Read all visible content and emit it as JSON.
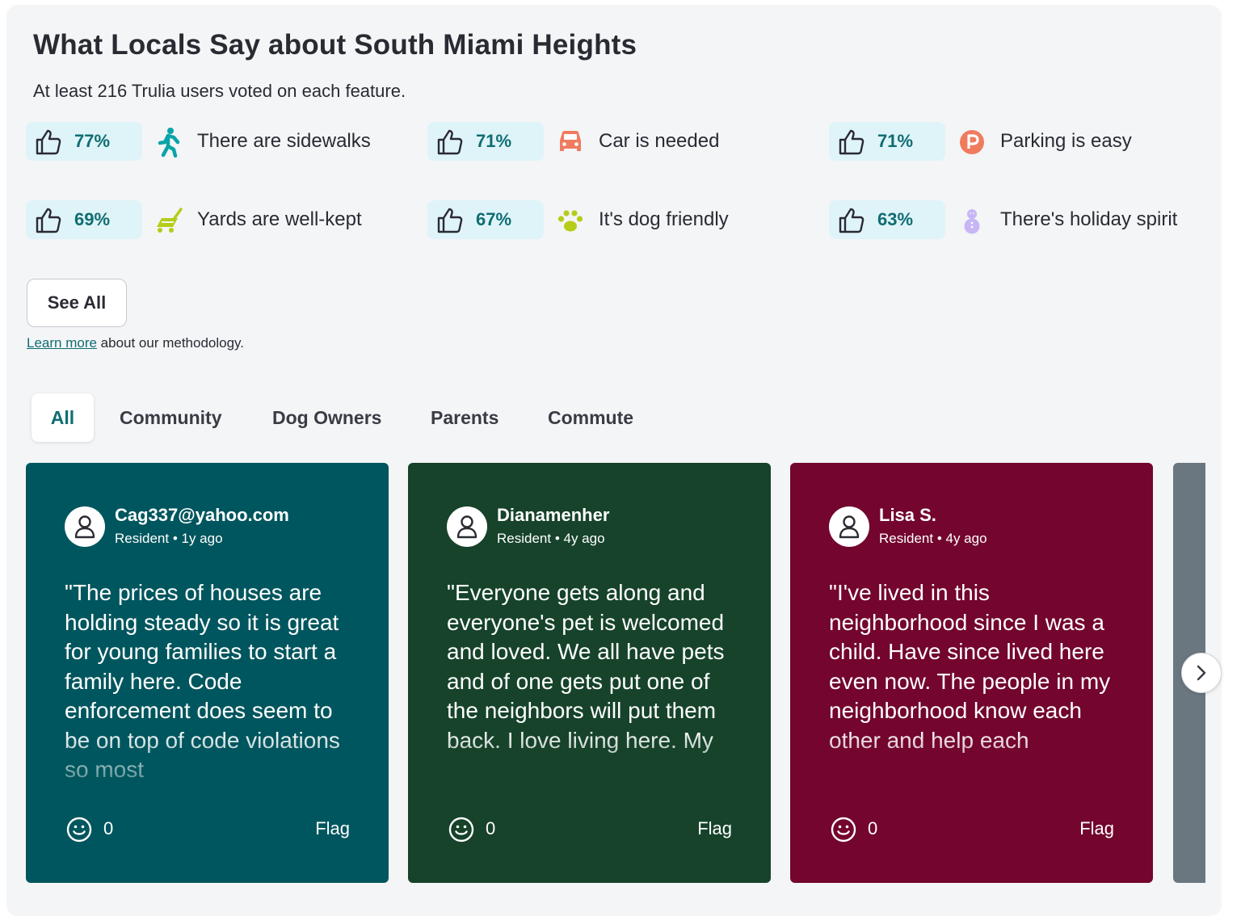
{
  "header": {
    "title": "What Locals Say about South Miami Heights",
    "subtitle": "At least 216 Trulia users voted on each feature."
  },
  "features": [
    {
      "percent": "77%",
      "label": "There are sidewalks",
      "icon": "walking-person-icon",
      "color": "#0aa4a8"
    },
    {
      "percent": "71%",
      "label": "Car is needed",
      "icon": "car-icon",
      "color": "#f07b5f"
    },
    {
      "percent": "71%",
      "label": "Parking is easy",
      "icon": "parking-icon",
      "color": "#f07b5f"
    },
    {
      "percent": "69%",
      "label": "Yards are well-kept",
      "icon": "lawn-mower-icon",
      "color": "#b5cc18"
    },
    {
      "percent": "67%",
      "label": "It's dog friendly",
      "icon": "paw-icon",
      "color": "#b5cc18"
    },
    {
      "percent": "63%",
      "label": "There's holiday spirit",
      "icon": "snowman-icon",
      "color": "#c7b6f5"
    }
  ],
  "see_all_label": "See All",
  "methodology": {
    "link": "Learn more",
    "text": " about our methodology."
  },
  "tabs": [
    {
      "label": "All",
      "active": true
    },
    {
      "label": "Community"
    },
    {
      "label": "Dog Owners"
    },
    {
      "label": "Parents"
    },
    {
      "label": "Commute"
    }
  ],
  "reviews": [
    {
      "author": "Cag337@yahoo.com",
      "meta": "Resident • 1y ago",
      "quote": "\"The prices of houses are holding steady so it is great for young families to start a family here. Code enforcement does seem to be on top of code violations so most",
      "reactions": "0",
      "flag": "Flag",
      "color": "#00565e"
    },
    {
      "author": "Dianamenher",
      "meta": "Resident • 4y ago",
      "quote": "\"Everyone gets along and everyone's pet is welcomed and loved. We all have pets and of one gets put one of the neighbors will put them back. I love living here. My",
      "reactions": "0",
      "flag": "Flag",
      "color": "#16432a"
    },
    {
      "author": "Lisa S.",
      "meta": "Resident • 4y ago",
      "quote": "\"I've lived in this neighborhood since I was a child. Have since lived here even now. The people in my neighborhood know each other and help each",
      "reactions": "0",
      "flag": "Flag",
      "color": "#73052e"
    }
  ],
  "theme": {
    "accent": "#0f6d72",
    "pill_bg": "#dff4f8",
    "panel_bg": "#f4f5f7"
  }
}
